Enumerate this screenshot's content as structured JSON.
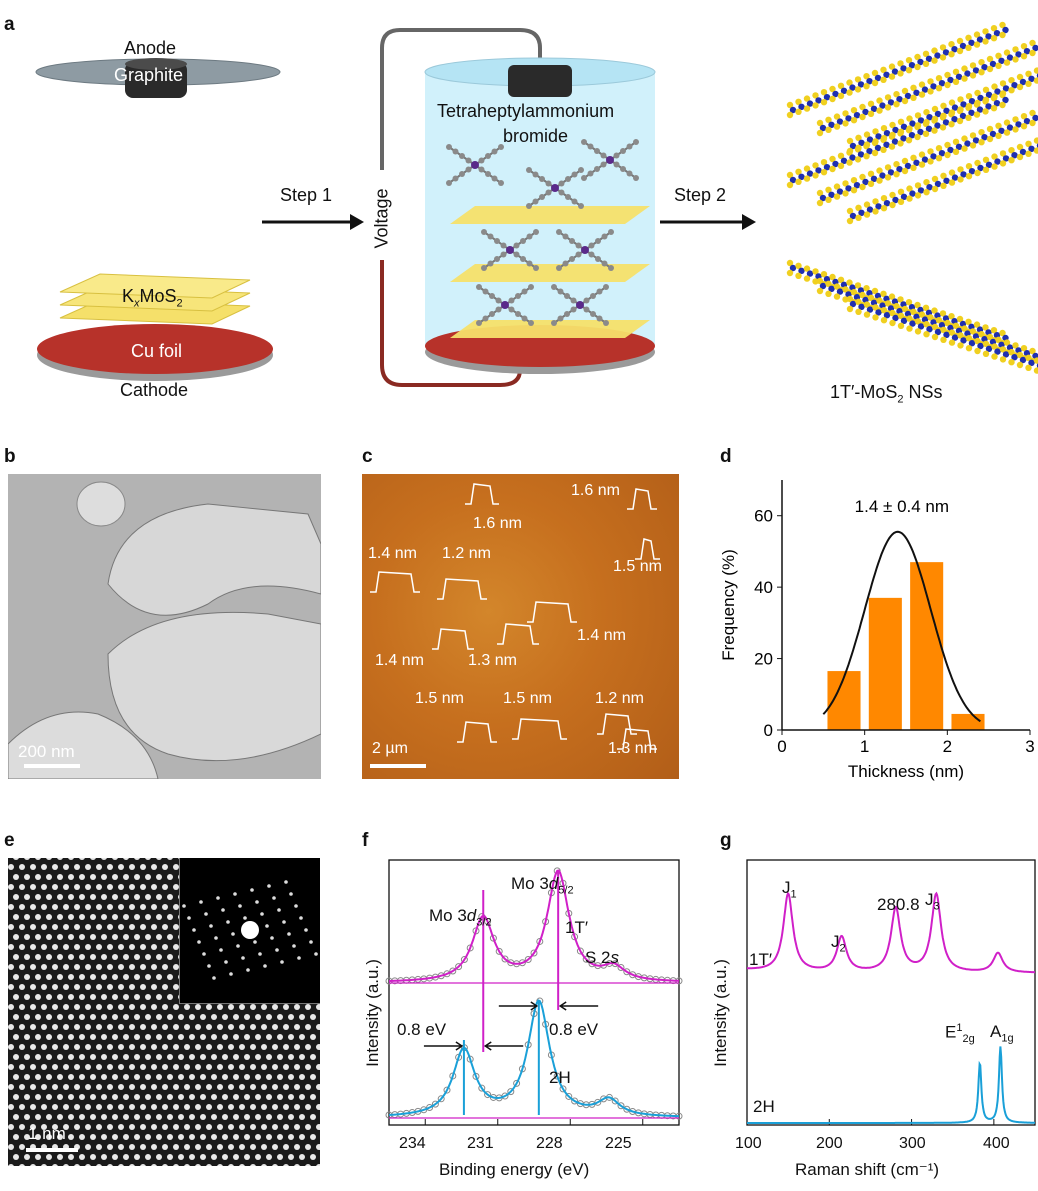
{
  "panel_labels": {
    "a": "a",
    "b": "b",
    "c": "c",
    "d": "d",
    "e": "e",
    "f": "f",
    "g": "g"
  },
  "panel_a": {
    "anode": "Anode",
    "graphite": "Graphite",
    "step1": "Step 1",
    "step2": "Step 2",
    "voltage": "Voltage",
    "reagent_line1": "Tetraheptylammonium",
    "reagent_line2": "bromide",
    "kxmos2": {
      "k": "K",
      "x": "x",
      "mo": "MoS",
      "two": "2"
    },
    "cu_foil": "Cu foil",
    "cathode": "Cathode",
    "product": {
      "main": "1T′-MoS",
      "sub": "2",
      "rest": " NSs"
    },
    "colors": {
      "cu": "#b7322a",
      "sheet": "#f5e06a",
      "electrolyte": "#c9eefa",
      "mo": "#1f2fb0",
      "s": "#f0d020"
    }
  },
  "panel_b": {
    "scalebar": "200 nm"
  },
  "panel_c": {
    "scalebar": "2 µm",
    "heights": [
      "1.6 nm",
      "1.6 nm",
      "1.4 nm",
      "1.2 nm",
      "1.5 nm",
      "1.4 nm",
      "1.3 nm",
      "1.4 nm",
      "1.5 nm",
      "1.5 nm",
      "1.2 nm",
      "1.3 nm"
    ]
  },
  "panel_e": {
    "scalebar": "1 nm"
  },
  "panel_f": {
    "ylabel": "Intensity (a.u.)",
    "xlabel": "Binding energy (eV)",
    "mo32": {
      "base": "Mo 3",
      "d": "d",
      "sub": "3/2"
    },
    "mo52": {
      "base": "Mo 3",
      "d": "d",
      "sub": "5/2"
    },
    "s2s": {
      "base": "S 2",
      "s": "s"
    },
    "phase_1t": "1T′",
    "phase_2h": "2H",
    "shift_left": "0.8 eV",
    "shift_right": "0.8 eV",
    "ticks": [
      "234",
      "231",
      "228",
      "225"
    ],
    "colors": {
      "t1": "#d020c8",
      "h2": "#1aa0d8",
      "circle": "#888888"
    }
  },
  "panel_g": {
    "ylabel": "Intensity (a.u.)",
    "xlabel": "Raman shift (cm⁻¹)",
    "j1": {
      "j": "J",
      "n": "1"
    },
    "j2": {
      "j": "J",
      "n": "2"
    },
    "j3": {
      "j": "J",
      "n": "3"
    },
    "peak": "280.8",
    "phase_1t": "1T′",
    "phase_2h": "2H",
    "e2g": {
      "e": "E",
      "sup": "1",
      "sub": "2g"
    },
    "a1g": {
      "a": "A",
      "sub": "1g"
    },
    "ticks": [
      "100",
      "200",
      "300",
      "400"
    ],
    "colors": {
      "t1": "#d020c8",
      "h2": "#1aa0d8"
    }
  },
  "chart_data": [
    {
      "type": "bar",
      "panel": "d",
      "title": "1.4 ± 0.4 nm",
      "xlabel": "Thickness (nm)",
      "ylabel": "Frequency (%)",
      "xlim": [
        0,
        3
      ],
      "ylim": [
        0,
        70
      ],
      "xticks": [
        "0",
        "1",
        "2",
        "3"
      ],
      "yticks": [
        "0",
        "20",
        "40",
        "60"
      ],
      "bins": [
        {
          "x0": 0.55,
          "x1": 0.95,
          "value": 16.5
        },
        {
          "x0": 1.05,
          "x1": 1.45,
          "value": 37
        },
        {
          "x0": 1.55,
          "x1": 1.95,
          "value": 47
        },
        {
          "x0": 2.05,
          "x1": 2.45,
          "value": 4.5
        }
      ],
      "fit": {
        "kind": "gaussian",
        "mean": 1.4,
        "sd": 0.4,
        "peak": 55.5
      },
      "bar_color": "#ff8800",
      "grid": false
    },
    {
      "type": "line",
      "panel": "f",
      "xlabel": "Binding energy (eV)",
      "ylabel": "Intensity (a.u.)",
      "xlim": [
        235.5,
        223.5
      ],
      "xticks": [
        234,
        231,
        228,
        225
      ],
      "series": [
        {
          "name": "1T′",
          "peaks": [
            {
              "center": 231.6,
              "height": 0.58
            },
            {
              "center": 228.5,
              "height": 1.0
            },
            {
              "center": 226.2,
              "height": 0.12
            }
          ]
        },
        {
          "name": "2H",
          "peaks": [
            {
              "center": 232.4,
              "height": 0.58
            },
            {
              "center": 229.3,
              "height": 1.0
            },
            {
              "center": 226.4,
              "height": 0.14
            }
          ]
        }
      ]
    },
    {
      "type": "line",
      "panel": "g",
      "xlabel": "Raman shift (cm⁻¹)",
      "ylabel": "Intensity (a.u.)",
      "xlim": [
        100,
        450
      ],
      "xticks": [
        100,
        200,
        300,
        400
      ],
      "series": [
        {
          "name": "1T′",
          "peaks": [
            {
              "center": 150,
              "height": 1.0
            },
            {
              "center": 215,
              "height": 0.45
            },
            {
              "center": 280.8,
              "height": 0.82
            },
            {
              "center": 330,
              "height": 1.0
            },
            {
              "center": 405,
              "height": 0.25
            }
          ]
        },
        {
          "name": "2H",
          "peaks": [
            {
              "center": 383,
              "height": 0.75
            },
            {
              "center": 408,
              "height": 0.95
            }
          ]
        }
      ]
    }
  ]
}
